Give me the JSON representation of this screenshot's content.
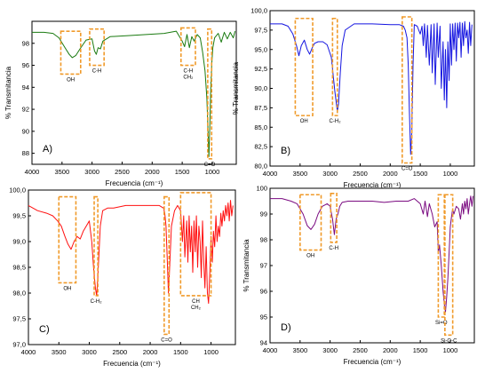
{
  "chart_data": [
    {
      "type": "line",
      "panel_label": "A)",
      "color": "#1a7a10",
      "xlabel": "Frecuencia (cm⁻¹)",
      "ylabel": "% Transmitancia",
      "xlim": [
        4000,
        600
      ],
      "ylim": [
        87,
        100
      ],
      "xticks": [
        4000,
        3500,
        3000,
        2500,
        2000,
        1500,
        1000
      ],
      "yticks": [
        88,
        90,
        92,
        94,
        96,
        98
      ],
      "tick_labels_y": [
        "88",
        "90",
        "92",
        "94",
        "96",
        "98"
      ],
      "series": [
        {
          "x": [
            4000,
            3800,
            3650,
            3550,
            3450,
            3380,
            3330,
            3270,
            3200,
            3100,
            3000,
            2960,
            2930,
            2900,
            2860,
            2820,
            2700,
            2400,
            2100,
            1800,
            1600,
            1500,
            1460,
            1420,
            1380,
            1340,
            1300,
            1250,
            1200,
            1160,
            1120,
            1090,
            1070,
            1055,
            1040,
            1025,
            1010,
            990,
            960,
            900,
            850,
            800,
            750,
            700,
            650,
            620
          ],
          "y": [
            99.0,
            99.0,
            98.9,
            98.5,
            97.6,
            97.0,
            96.7,
            96.9,
            97.5,
            98.3,
            98.4,
            97.3,
            97.0,
            97.6,
            97.5,
            98.2,
            98.6,
            98.7,
            98.8,
            98.9,
            99.1,
            98.2,
            97.7,
            98.8,
            97.6,
            98.6,
            98.2,
            98.8,
            98.5,
            97.2,
            95.5,
            93.0,
            90.0,
            87.7,
            90.5,
            94.0,
            96.0,
            97.6,
            98.5,
            98.9,
            98.1,
            99.0,
            98.4,
            99.0,
            98.5,
            99.1
          ]
        }
      ],
      "annotations": [
        {
          "text": "OH",
          "x1": 3520,
          "x2": 3190,
          "y_top": 99.1,
          "y_bottom": 95.2
        },
        {
          "text": "C-H",
          "x1": 3040,
          "x2": 2800,
          "y_top": 99.3,
          "y_bottom": 96.0
        },
        {
          "text": "C-H CH₂",
          "x1": 1520,
          "x2": 1280,
          "y_top": 99.4,
          "y_bottom": 96.0
        },
        {
          "text": "C=O",
          "x1": 1075,
          "x2": 1010,
          "y_top": 99.3,
          "y_bottom": 87.5
        }
      ]
    },
    {
      "type": "line",
      "panel_label": "B)",
      "color": "#1515e0",
      "xlabel": "Frecuencia (cm⁻¹)",
      "ylabel": "% Transmitancia",
      "xlim": [
        4000,
        600
      ],
      "ylim": [
        80,
        100
      ],
      "xticks": [
        4000,
        3500,
        3000,
        2500,
        2000,
        1500,
        1000
      ],
      "yticks": [
        80.0,
        82.5,
        85.0,
        87.5,
        90.0,
        92.5,
        95.0,
        97.5,
        100.0
      ],
      "tick_labels_y": [
        "80,0",
        "82,5",
        "85,0",
        "87,5",
        "90,0",
        "92,5",
        "95,0",
        "97,5",
        "100,0"
      ],
      "series": [
        {
          "x": [
            4000,
            3800,
            3700,
            3620,
            3560,
            3520,
            3480,
            3430,
            3380,
            3340,
            3300,
            3260,
            3200,
            3120,
            3050,
            2980,
            2940,
            2920,
            2880,
            2860,
            2830,
            2800,
            2750,
            2600,
            2300,
            2000,
            1850,
            1780,
            1750,
            1720,
            1700,
            1680,
            1660,
            1640,
            1620,
            1600,
            1550,
            1500,
            1470,
            1450,
            1430,
            1400,
            1380,
            1350,
            1320,
            1300,
            1270,
            1250,
            1220,
            1200,
            1170,
            1150,
            1120,
            1100,
            1080,
            1060,
            1040,
            1020,
            1000,
            980,
            960,
            940,
            920,
            900,
            880,
            860,
            840,
            820,
            800,
            780,
            760,
            740,
            720,
            700,
            680,
            660,
            640
          ],
          "y": [
            98.3,
            98.3,
            98.0,
            97.0,
            95.5,
            94.2,
            95.5,
            96.2,
            95.0,
            94.4,
            95.2,
            95.8,
            96.0,
            96.0,
            95.6,
            94.0,
            91.0,
            89.5,
            87.0,
            88.0,
            92.0,
            95.5,
            97.5,
            98.3,
            98.3,
            98.2,
            98.2,
            98.0,
            97.5,
            96.5,
            93.0,
            87.0,
            81.5,
            84.5,
            93.0,
            98.2,
            98.0,
            97.0,
            98.0,
            95.5,
            98.3,
            94.0,
            98.1,
            93.0,
            98.2,
            92.0,
            98.3,
            90.5,
            98.4,
            94.0,
            98.0,
            90.0,
            96.0,
            88.5,
            95.0,
            87.5,
            96.0,
            91.0,
            98.3,
            93.0,
            98.3,
            95.0,
            98.4,
            93.5,
            98.4,
            96.5,
            98.5,
            94.0,
            98.4,
            95.5,
            98.6,
            96.5,
            97.5,
            94.5,
            98.5,
            95.5,
            98.2
          ]
        }
      ],
      "annotations": [
        {
          "text": "OH",
          "x1": 3580,
          "x2": 3290,
          "y_top": 99.0,
          "y_bottom": 86.5
        },
        {
          "text": "C-H₂",
          "x1": 2960,
          "x2": 2880,
          "y_top": 99.0,
          "y_bottom": 86.5
        },
        {
          "text": "C=O",
          "x1": 1800,
          "x2": 1640,
          "y_top": 99.2,
          "y_bottom": 80.4
        }
      ]
    },
    {
      "type": "line",
      "panel_label": "C)",
      "color": "#ff1010",
      "xlabel": "Frecuencia (cm⁻¹)",
      "ylabel": "% Transmitancia",
      "xlim": [
        4000,
        600
      ],
      "ylim": [
        97.0,
        100.0
      ],
      "xticks": [
        4000,
        3500,
        3000,
        2500,
        2000,
        1500,
        1000
      ],
      "yticks": [
        97.0,
        97.5,
        98.0,
        98.5,
        99.0,
        99.5,
        100.0
      ],
      "tick_labels_y": [
        "97,0",
        "97,5",
        "98,0",
        "98,5",
        "99,0",
        "99,5",
        "100,0"
      ],
      "series": [
        {
          "x": [
            4000,
            3850,
            3700,
            3600,
            3520,
            3460,
            3400,
            3350,
            3300,
            3250,
            3200,
            3150,
            3100,
            3050,
            3000,
            2960,
            2930,
            2900,
            2880,
            2860,
            2840,
            2820,
            2780,
            2700,
            2600,
            2400,
            2200,
            2000,
            1850,
            1780,
            1760,
            1740,
            1720,
            1700,
            1680,
            1650,
            1600,
            1550,
            1500,
            1470,
            1450,
            1430,
            1400,
            1380,
            1360,
            1340,
            1320,
            1300,
            1280,
            1260,
            1240,
            1220,
            1200,
            1180,
            1160,
            1140,
            1120,
            1100,
            1080,
            1060,
            1040,
            1020,
            1000,
            980,
            960,
            940,
            920,
            900,
            880,
            860,
            840,
            820,
            800,
            780,
            760,
            740,
            720,
            700,
            680,
            660,
            640
          ],
          "y": [
            99.7,
            99.6,
            99.55,
            99.5,
            99.4,
            99.3,
            99.1,
            98.95,
            98.85,
            99.0,
            99.1,
            99.05,
            99.2,
            99.3,
            99.4,
            99.0,
            98.5,
            98.1,
            97.95,
            98.3,
            98.8,
            99.3,
            99.6,
            99.65,
            99.65,
            99.7,
            99.7,
            99.7,
            99.7,
            99.65,
            99.55,
            99.3,
            98.7,
            98.0,
            98.5,
            99.3,
            99.6,
            99.7,
            99.6,
            99.0,
            99.5,
            98.7,
            99.4,
            98.6,
            99.5,
            98.8,
            99.3,
            98.4,
            99.4,
            98.8,
            99.5,
            98.5,
            99.3,
            99.0,
            98.3,
            99.4,
            98.6,
            98.1,
            98.9,
            98.0,
            97.8,
            98.4,
            99.1,
            98.6,
            99.2,
            98.9,
            99.5,
            99.0,
            99.3,
            99.1,
            99.55,
            99.3,
            99.6,
            99.4,
            99.7,
            99.5,
            99.75,
            99.4,
            99.8,
            99.5,
            99.7
          ]
        }
      ],
      "annotations": [
        {
          "text": "OH",
          "x1": 3500,
          "x2": 3220,
          "y_top": 99.87,
          "y_bottom": 98.2
        },
        {
          "text": "C-H₂",
          "x1": 2920,
          "x2": 2860,
          "y_top": 99.87,
          "y_bottom": 97.95
        },
        {
          "text": "C=O",
          "x1": 1770,
          "x2": 1690,
          "y_top": 99.87,
          "y_bottom": 97.2
        },
        {
          "text": "CH CH₂",
          "x1": 1500,
          "x2": 1000,
          "y_top": 99.95,
          "y_bottom": 97.95
        }
      ]
    },
    {
      "type": "line",
      "panel_label": "D)",
      "color": "#7a0a80",
      "xlabel": "Frecuencia (cm⁻¹)",
      "ylabel": "% Transmitancia",
      "xlim": [
        4000,
        600
      ],
      "ylim": [
        94,
        100
      ],
      "xticks": [
        4000,
        3500,
        3000,
        2500,
        2000,
        1500,
        1000
      ],
      "yticks": [
        94,
        95,
        96,
        97,
        98,
        99,
        100
      ],
      "tick_labels_y": [
        "94",
        "95",
        "96",
        "97",
        "98",
        "99",
        "100"
      ],
      "series": [
        {
          "x": [
            4000,
            3800,
            3650,
            3550,
            3450,
            3380,
            3320,
            3260,
            3200,
            3130,
            3050,
            3000,
            2960,
            2930,
            2900,
            2870,
            2840,
            2800,
            2700,
            2500,
            2300,
            2100,
            1900,
            1700,
            1600,
            1500,
            1450,
            1420,
            1400,
            1380,
            1350,
            1300,
            1260,
            1220,
            1200,
            1180,
            1150,
            1120,
            1100,
            1080,
            1060,
            1040,
            1020,
            1000,
            980,
            960,
            940,
            900,
            860,
            830,
            800,
            780,
            760,
            740,
            720,
            700,
            680,
            660,
            640,
            620
          ],
          "y": [
            99.6,
            99.6,
            99.5,
            99.4,
            99.0,
            98.55,
            98.4,
            98.6,
            99.0,
            99.3,
            99.4,
            99.3,
            98.8,
            98.2,
            98.8,
            99.0,
            99.3,
            99.45,
            99.5,
            99.5,
            99.5,
            99.45,
            99.5,
            99.5,
            99.6,
            99.4,
            99.0,
            99.5,
            99.2,
            98.9,
            99.4,
            99.0,
            98.5,
            98.7,
            97.5,
            97.8,
            97.0,
            96.0,
            95.5,
            95.2,
            95.8,
            96.5,
            97.5,
            98.5,
            98.9,
            99.2,
            99.0,
            99.3,
            99.2,
            98.8,
            99.4,
            99.0,
            99.5,
            99.2,
            99.6,
            99.0,
            99.4,
            99.7,
            99.3,
            99.7
          ]
        }
      ],
      "annotations": [
        {
          "text": "OH",
          "x1": 3500,
          "x2": 3150,
          "y_top": 99.75,
          "y_bottom": 97.6
        },
        {
          "text": "C-H",
          "x1": 2990,
          "x2": 2890,
          "y_top": 99.8,
          "y_bottom": 97.9
        },
        {
          "text": "Si=O",
          "x1": 1200,
          "x2": 1100,
          "y_top": 99.75,
          "y_bottom": 95.0
        },
        {
          "text": "Si-O-C",
          "x1": 1090,
          "x2": 960,
          "y_top": 99.75,
          "y_bottom": 94.3
        }
      ]
    }
  ]
}
